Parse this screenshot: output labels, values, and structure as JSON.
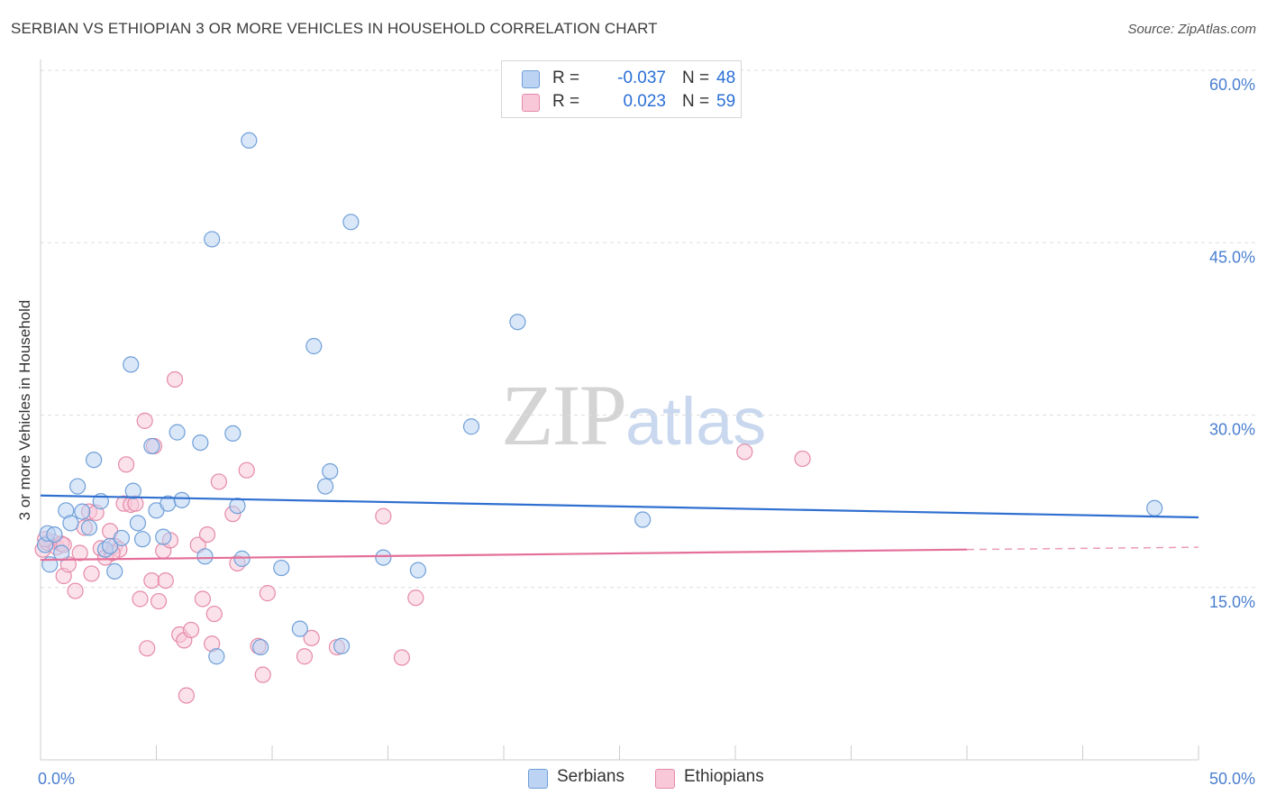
{
  "header": {
    "title": "SERBIAN VS ETHIOPIAN 3 OR MORE VEHICLES IN HOUSEHOLD CORRELATION CHART",
    "source": "Source: ZipAtlas.com"
  },
  "watermark": {
    "zip": "ZIP",
    "atlas": "atlas"
  },
  "legend": {
    "serbians": {
      "r_label": "R =",
      "r_value": "-0.037",
      "n_label": "N =",
      "n_value": "48"
    },
    "ethiopians": {
      "r_label": "R =",
      "r_value": "0.023",
      "n_label": "N =",
      "n_value": "59"
    }
  },
  "bottom_legend": {
    "serbians": "Serbians",
    "ethiopians": "Ethiopians"
  },
  "colors": {
    "serbian_fill": "#bcd3f3",
    "serbian_stroke": "#6f9fd8",
    "serbian_line": "#2f6fd0",
    "ethiopian_fill": "#f8c8d8",
    "ethiopian_stroke": "#e58aa8",
    "ethiopian_line": "#e46f9a",
    "tick_label": "#4a7fd0",
    "grid": "#dddddd"
  },
  "chart_data": {
    "type": "scatter",
    "ylabel": "3 or more Vehicles in Household",
    "xlim": [
      0,
      50
    ],
    "ylim": [
      0,
      60
    ],
    "x_tick_labels": [
      {
        "value": 0,
        "label": "0.0%"
      },
      {
        "value": 50,
        "label": "50.0%"
      }
    ],
    "y_tick_labels": [
      {
        "value": 15,
        "label": "15.0%"
      },
      {
        "value": 30,
        "label": "30.0%"
      },
      {
        "value": 45,
        "label": "45.0%"
      },
      {
        "value": 60,
        "label": "60.0%"
      }
    ],
    "grid": true,
    "series": [
      {
        "name": "Serbians",
        "trend": {
          "x": [
            0,
            50
          ],
          "y": [
            23.0,
            21.1
          ]
        },
        "points": [
          [
            0.2,
            18.7
          ],
          [
            0.3,
            19.7
          ],
          [
            0.4,
            17.0
          ],
          [
            0.6,
            19.6
          ],
          [
            0.9,
            18.0
          ],
          [
            1.1,
            21.7
          ],
          [
            1.3,
            20.6
          ],
          [
            1.6,
            23.8
          ],
          [
            1.8,
            21.6
          ],
          [
            2.1,
            20.2
          ],
          [
            2.3,
            26.1
          ],
          [
            2.6,
            22.5
          ],
          [
            2.8,
            18.3
          ],
          [
            3.0,
            18.6
          ],
          [
            3.2,
            16.4
          ],
          [
            3.5,
            19.3
          ],
          [
            3.9,
            34.4
          ],
          [
            4.0,
            23.4
          ],
          [
            4.2,
            20.6
          ],
          [
            4.4,
            19.2
          ],
          [
            4.8,
            27.3
          ],
          [
            5.0,
            21.7
          ],
          [
            5.3,
            19.4
          ],
          [
            5.5,
            22.3
          ],
          [
            5.9,
            28.5
          ],
          [
            6.1,
            22.6
          ],
          [
            6.9,
            27.6
          ],
          [
            7.1,
            17.7
          ],
          [
            7.4,
            45.3
          ],
          [
            7.6,
            9.0
          ],
          [
            8.3,
            28.4
          ],
          [
            8.5,
            22.1
          ],
          [
            8.7,
            17.5
          ],
          [
            9.0,
            53.9
          ],
          [
            9.5,
            9.8
          ],
          [
            10.4,
            16.7
          ],
          [
            11.2,
            11.4
          ],
          [
            11.8,
            36.0
          ],
          [
            12.3,
            23.8
          ],
          [
            12.5,
            25.1
          ],
          [
            13.0,
            9.9
          ],
          [
            13.4,
            46.8
          ],
          [
            14.8,
            17.6
          ],
          [
            16.3,
            16.5
          ],
          [
            18.6,
            29.0
          ],
          [
            20.6,
            38.1
          ],
          [
            26.0,
            20.9
          ],
          [
            48.1,
            21.9
          ]
        ]
      },
      {
        "name": "Ethiopians",
        "trend": {
          "x": [
            0,
            40
          ],
          "y": [
            17.4,
            18.3
          ]
        },
        "trend_dashed": {
          "x": [
            40,
            50
          ],
          "y": [
            18.3,
            18.5
          ]
        },
        "points": [
          [
            0.1,
            18.3
          ],
          [
            0.3,
            18.9
          ],
          [
            0.5,
            19.0
          ],
          [
            0.7,
            18.5
          ],
          [
            0.9,
            18.8
          ],
          [
            1.0,
            16.0
          ],
          [
            1.2,
            17.0
          ],
          [
            1.5,
            14.7
          ],
          [
            1.7,
            18.0
          ],
          [
            1.9,
            20.2
          ],
          [
            2.1,
            21.6
          ],
          [
            2.2,
            16.2
          ],
          [
            2.4,
            21.5
          ],
          [
            2.6,
            18.4
          ],
          [
            2.8,
            17.6
          ],
          [
            3.0,
            19.9
          ],
          [
            3.2,
            18.6
          ],
          [
            3.4,
            18.3
          ],
          [
            3.6,
            22.3
          ],
          [
            3.7,
            25.7
          ],
          [
            3.9,
            22.2
          ],
          [
            4.1,
            22.3
          ],
          [
            4.3,
            14.0
          ],
          [
            4.5,
            29.5
          ],
          [
            4.6,
            9.7
          ],
          [
            4.8,
            15.6
          ],
          [
            4.9,
            27.3
          ],
          [
            5.1,
            13.8
          ],
          [
            5.3,
            18.2
          ],
          [
            5.4,
            15.6
          ],
          [
            5.6,
            19.1
          ],
          [
            5.8,
            33.1
          ],
          [
            6.0,
            10.9
          ],
          [
            6.2,
            10.4
          ],
          [
            6.3,
            5.6
          ],
          [
            6.5,
            11.3
          ],
          [
            6.8,
            18.7
          ],
          [
            7.0,
            14.0
          ],
          [
            7.2,
            19.6
          ],
          [
            7.4,
            10.1
          ],
          [
            7.5,
            12.7
          ],
          [
            7.7,
            24.2
          ],
          [
            8.3,
            21.4
          ],
          [
            8.5,
            17.1
          ],
          [
            8.9,
            25.2
          ],
          [
            9.4,
            9.9
          ],
          [
            9.6,
            7.4
          ],
          [
            9.8,
            14.5
          ],
          [
            11.4,
            9.0
          ],
          [
            11.7,
            10.6
          ],
          [
            12.8,
            9.8
          ],
          [
            14.8,
            21.2
          ],
          [
            15.6,
            8.9
          ],
          [
            16.2,
            14.1
          ],
          [
            30.4,
            26.8
          ],
          [
            32.9,
            26.2
          ],
          [
            0.2,
            19.2
          ],
          [
            1.0,
            18.7
          ],
          [
            3.1,
            18.0
          ]
        ]
      }
    ]
  }
}
